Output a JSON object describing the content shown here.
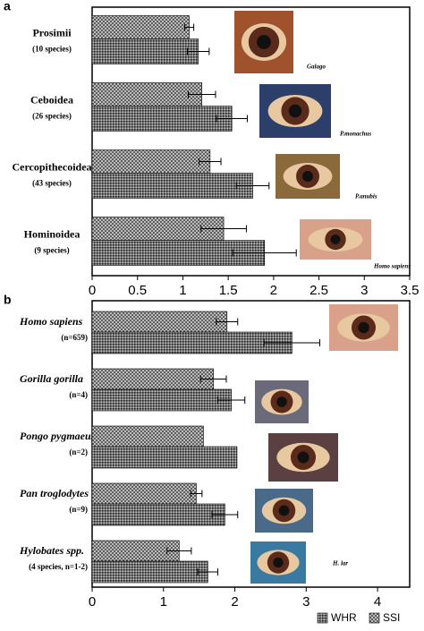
{
  "chart_data": [
    {
      "type": "bar",
      "panel_label": "a",
      "categories": [
        "Prosimii",
        "Ceboidea",
        "Cercopithecoidea",
        "Hominoidea"
      ],
      "category_notes": [
        "(10 species)",
        "(26 species)",
        "(43 species)",
        "(9 species)"
      ],
      "category_style": "normal",
      "series": [
        {
          "pattern": "crosshatch",
          "values": [
            1.07,
            1.21,
            1.3,
            1.45
          ],
          "errors": [
            0.05,
            0.15,
            0.12,
            0.25
          ]
        },
        {
          "pattern": "dots",
          "values": [
            1.17,
            1.54,
            1.77,
            1.9
          ],
          "errors": [
            0.12,
            0.17,
            0.18,
            0.35
          ]
        }
      ],
      "photo_captions": [
        "Galago",
        "P.monachus",
        "P.anubis",
        "Homo sapiens"
      ],
      "xlim": [
        0,
        3.5
      ],
      "xticks": [
        0,
        0.5,
        1,
        1.5,
        2,
        2.5,
        3,
        3.5
      ]
    },
    {
      "type": "bar",
      "panel_label": "b",
      "categories": [
        "Homo sapiens",
        "Gorilla gorilla",
        "Pongo pygmaeus",
        "Pan troglodytes",
        "Hylobates spp."
      ],
      "category_notes": [
        "(n=659)",
        "(n=4)",
        "(n=2)",
        "(n=9)",
        "(4  species,  n=1-2)"
      ],
      "category_style": "italic",
      "series": [
        {
          "name": "SSI",
          "pattern": "crosshatch",
          "values": [
            1.89,
            1.7,
            1.56,
            1.46,
            1.22
          ],
          "errors": [
            0.15,
            0.18,
            null,
            0.08,
            0.17
          ]
        },
        {
          "name": "WHR",
          "pattern": "dots",
          "values": [
            2.8,
            1.95,
            2.03,
            1.86,
            1.62
          ],
          "errors": [
            0.39,
            0.19,
            null,
            0.18,
            0.14
          ]
        }
      ],
      "photo_captions": [
        null,
        null,
        null,
        null,
        "H. lar"
      ],
      "xlim": [
        0,
        4.45
      ],
      "xticks": [
        0,
        1,
        2,
        3,
        4
      ]
    }
  ]
}
